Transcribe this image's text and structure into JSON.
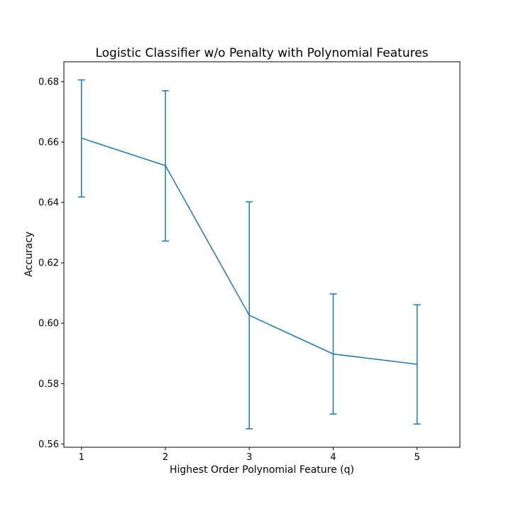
{
  "chart_data": {
    "type": "line",
    "title": "Logistic Classifier w/o Penalty with Polynomial Features",
    "xlabel": "Highest Order Polynomial Feature (q)",
    "ylabel": "Accuracy",
    "x": [
      1,
      2,
      3,
      4,
      5
    ],
    "x_ticks": [
      "1",
      "2",
      "3",
      "4",
      "5"
    ],
    "y_ticks": [
      "0.56",
      "0.58",
      "0.60",
      "0.62",
      "0.64",
      "0.66",
      "0.68"
    ],
    "xlim": [
      0.79,
      5.51
    ],
    "ylim": [
      0.5589,
      0.6866
    ],
    "grid": false,
    "series": [
      {
        "values": [
          0.6613,
          0.6522,
          0.6026,
          0.5898,
          0.5864
        ],
        "error_lower": [
          0.6418,
          0.6272,
          0.565,
          0.5699,
          0.5666
        ],
        "error_upper": [
          0.6806,
          0.677,
          0.6402,
          0.6097,
          0.6061
        ],
        "color": "#1f77b4"
      }
    ]
  }
}
